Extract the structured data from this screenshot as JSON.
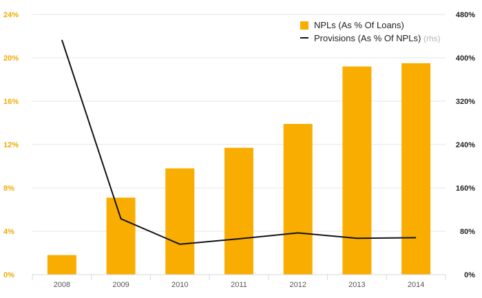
{
  "chart_data": {
    "type": "bar",
    "categories": [
      "2008",
      "2009",
      "2010",
      "2011",
      "2012",
      "2013",
      "2014"
    ],
    "series": [
      {
        "name": "NPLs (As % Of Loans)",
        "type": "bar",
        "axis": "left",
        "color": "#f9ad00",
        "values": [
          1.8,
          7.1,
          9.8,
          11.7,
          13.9,
          19.2,
          19.5
        ]
      },
      {
        "name": "Provisions (As % Of NPLs)",
        "type": "line",
        "axis": "right",
        "color": "#111111",
        "values": [
          433,
          103,
          56,
          66,
          77,
          67,
          68
        ]
      }
    ],
    "y_left": {
      "ylim": [
        0,
        24
      ],
      "ticks": [
        0,
        4,
        8,
        12,
        16,
        20,
        24
      ],
      "tick_labels": [
        "0%",
        "4%",
        "8%",
        "12%",
        "16%",
        "20%",
        "24%"
      ],
      "color": "#f2aa00"
    },
    "y_right": {
      "ylim": [
        0,
        480
      ],
      "ticks": [
        0,
        80,
        160,
        240,
        320,
        400,
        480
      ],
      "tick_labels": [
        "0%",
        "80%",
        "160%",
        "240%",
        "320%",
        "400%",
        "480%"
      ],
      "color": "#222222"
    },
    "legend": {
      "position": "top-right",
      "items": [
        {
          "label": "NPLs (As % Of Loans)",
          "note": "",
          "marker": "square",
          "color": "#f9ad00"
        },
        {
          "label": "Provisions (As % Of NPLs)",
          "note": "(rhs)",
          "marker": "line",
          "color": "#111111"
        }
      ]
    },
    "grid": true
  }
}
